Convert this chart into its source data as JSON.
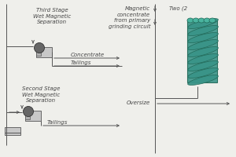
{
  "bg_color": "#efefeb",
  "line_color": "#555555",
  "text_color": "#444444",
  "separator_fill": "#c8c8c8",
  "separator_dark": "#b0b0b0",
  "ball_color": "#666666",
  "ball_edge": "#333333",
  "teal_color": "#3a9488",
  "teal_dark": "#1e6655",
  "third_stage_label": "Third Stage\nWet Magnetic\nSeparation",
  "second_stage_label": "Second Stage\nWet Magnetic\nSeparation",
  "magnetic_concentrate_label": "Magnetic\nconcentrate\nfrom primary\ngrinding circuit",
  "two_label": "Two (2",
  "oversize_label": "Oversize",
  "concentrate_label": "Concentrate",
  "tailings_label1": "Tailings",
  "tailings_label2": "Tailings",
  "font_size": 5.0
}
